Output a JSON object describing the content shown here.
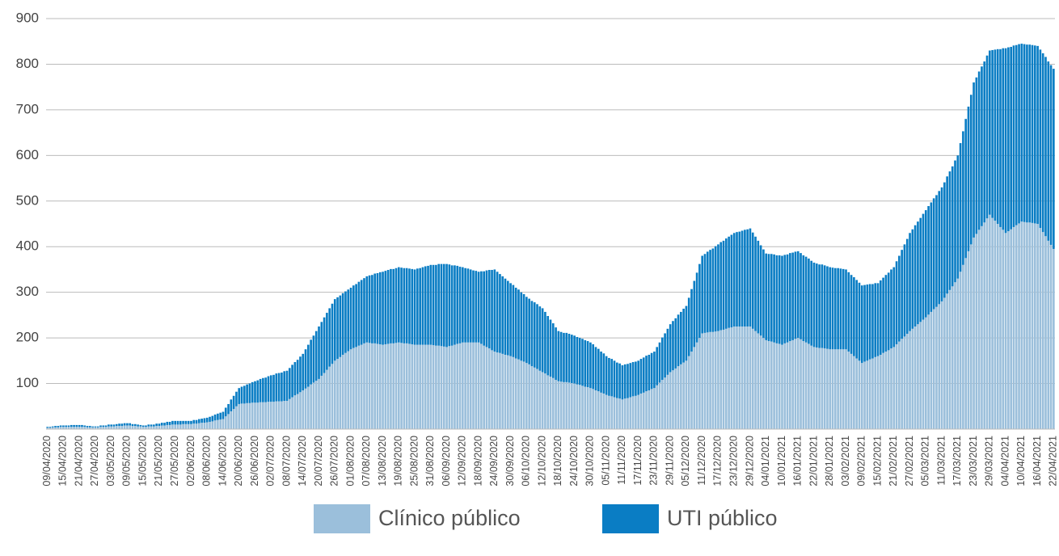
{
  "chart_data": {
    "type": "bar",
    "stacked": true,
    "categories": [
      "09/04/2020",
      null,
      null,
      null,
      null,
      null,
      "15/04/2020",
      null,
      null,
      null,
      null,
      null,
      "21/04/2020",
      null,
      null,
      null,
      null,
      null,
      "27/04/2020",
      null,
      null,
      null,
      null,
      null,
      "03/05/2020",
      null,
      null,
      null,
      null,
      null,
      "09/05/2020",
      null,
      null,
      null,
      null,
      null,
      "15/05/2020",
      null,
      null,
      null,
      null,
      null,
      "21/05/2020",
      null,
      null,
      null,
      null,
      null,
      "27/05/2020",
      null,
      null,
      null,
      null,
      null,
      "02/06/2020",
      null,
      null,
      null,
      null,
      null,
      "08/06/2020",
      null,
      null,
      null,
      null,
      null,
      "14/06/2020",
      null,
      null,
      null,
      null,
      null,
      "20/06/2020",
      null,
      null,
      null,
      null,
      null,
      "26/06/2020",
      null,
      null,
      null,
      null,
      null,
      "02/07/2020",
      null,
      null,
      null,
      null,
      null,
      "08/07/2020",
      null,
      null,
      null,
      null,
      null,
      "14/07/2020",
      null,
      null,
      null,
      null,
      null,
      "20/07/2020",
      null,
      null,
      null,
      null,
      null,
      "26/07/2020",
      null,
      null,
      null,
      null,
      null,
      "01/08/2020",
      null,
      null,
      null,
      null,
      null,
      "07/08/2020",
      null,
      null,
      null,
      null,
      null,
      "13/08/2020",
      null,
      null,
      null,
      null,
      null,
      "19/08/2020",
      null,
      null,
      null,
      null,
      null,
      "25/08/2020",
      null,
      null,
      null,
      null,
      null,
      "31/08/2020",
      null,
      null,
      null,
      null,
      null,
      "06/09/2020",
      null,
      null,
      null,
      null,
      null,
      "12/09/2020",
      null,
      null,
      null,
      null,
      null,
      "18/09/2020",
      null,
      null,
      null,
      null,
      null,
      "24/09/2020",
      null,
      null,
      null,
      null,
      null,
      "30/09/2020",
      null,
      null,
      null,
      null,
      null,
      "06/10/2020",
      null,
      null,
      null,
      null,
      null,
      "12/10/2020",
      null,
      null,
      null,
      null,
      null,
      "18/10/2020",
      null,
      null,
      null,
      null,
      null,
      "24/10/2020",
      null,
      null,
      null,
      null,
      null,
      "30/10/2020",
      null,
      null,
      null,
      null,
      null,
      "05/11/2020",
      null,
      null,
      null,
      null,
      null,
      "11/11/2020",
      null,
      null,
      null,
      null,
      null,
      "17/11/2020",
      null,
      null,
      null,
      null,
      null,
      "23/11/2020",
      null,
      null,
      null,
      null,
      null,
      "29/11/2020",
      null,
      null,
      null,
      null,
      null,
      "05/12/2020",
      null,
      null,
      null,
      null,
      null,
      "11/12/2020",
      null,
      null,
      null,
      null,
      null,
      "17/12/2020",
      null,
      null,
      null,
      null,
      null,
      "23/12/2020",
      null,
      null,
      null,
      null,
      null,
      "29/12/2020",
      null,
      null,
      null,
      null,
      null,
      "04/01/2021",
      null,
      null,
      null,
      null,
      null,
      "10/01/2021",
      null,
      null,
      null,
      null,
      null,
      "16/01/2021",
      null,
      null,
      null,
      null,
      null,
      "22/01/2021",
      null,
      null,
      null,
      null,
      null,
      "28/01/2021",
      null,
      null,
      null,
      null,
      null,
      "03/02/2021",
      null,
      null,
      null,
      null,
      null,
      "09/02/2021",
      null,
      null,
      null,
      null,
      null,
      "15/02/2021",
      null,
      null,
      null,
      null,
      null,
      "21/02/2021",
      null,
      null,
      null,
      null,
      null,
      "27/02/2021",
      null,
      null,
      null,
      null,
      null,
      "05/03/2021",
      null,
      null,
      null,
      null,
      null,
      "11/03/2021",
      null,
      null,
      null,
      null,
      null,
      "17/03/2021",
      null,
      null,
      null,
      null,
      null,
      "23/03/2021",
      null,
      null,
      null,
      null,
      null,
      "29/03/2021",
      null,
      null,
      null,
      null,
      null,
      "04/04/2021",
      null,
      null,
      null,
      null,
      null,
      "10/04/2021",
      null,
      null,
      null,
      null,
      null,
      "16/04/2021",
      null,
      null,
      null,
      null,
      null,
      "22/04/2021"
    ],
    "series": [
      {
        "name": "Clínico público",
        "color": "#9bbfdb",
        "values": [
          3,
          3,
          4,
          4,
          4,
          5,
          5,
          5,
          5,
          5,
          5,
          5,
          5,
          5,
          5,
          4,
          4,
          4,
          4,
          4,
          5,
          5,
          5,
          6,
          6,
          6,
          7,
          7,
          7,
          8,
          8,
          8,
          7,
          7,
          6,
          6,
          5,
          5,
          6,
          6,
          6,
          7,
          7,
          8,
          8,
          9,
          9,
          10,
          10,
          10,
          10,
          11,
          11,
          11,
          11,
          12,
          12,
          13,
          14,
          14,
          15,
          16,
          17,
          19,
          20,
          21,
          22,
          28,
          33,
          39,
          44,
          50,
          55,
          56,
          56,
          57,
          57,
          58,
          58,
          58,
          59,
          59,
          59,
          60,
          60,
          60,
          61,
          61,
          61,
          62,
          62,
          66,
          70,
          74,
          77,
          81,
          85,
          89,
          93,
          98,
          102,
          106,
          110,
          117,
          123,
          130,
          137,
          143,
          150,
          154,
          158,
          163,
          167,
          171,
          175,
          178,
          180,
          183,
          185,
          188,
          190,
          189,
          188,
          188,
          187,
          186,
          185,
          186,
          187,
          188,
          188,
          189,
          190,
          189,
          188,
          188,
          187,
          186,
          185,
          185,
          185,
          185,
          185,
          185,
          185,
          184,
          183,
          183,
          182,
          181,
          180,
          182,
          183,
          185,
          187,
          188,
          190,
          190,
          190,
          190,
          190,
          190,
          190,
          187,
          183,
          180,
          177,
          173,
          170,
          168,
          167,
          165,
          163,
          162,
          160,
          158,
          155,
          153,
          150,
          148,
          145,
          142,
          138,
          135,
          132,
          128,
          125,
          122,
          118,
          115,
          112,
          108,
          105,
          104,
          103,
          103,
          102,
          101,
          100,
          98,
          97,
          95,
          93,
          92,
          90,
          88,
          85,
          83,
          80,
          78,
          75,
          73,
          72,
          70,
          68,
          67,
          65,
          67,
          68,
          70,
          72,
          73,
          75,
          78,
          80,
          83,
          85,
          88,
          90,
          96,
          102,
          108,
          113,
          119,
          125,
          129,
          133,
          138,
          142,
          146,
          150,
          160,
          170,
          180,
          190,
          200,
          210,
          211,
          212,
          213,
          213,
          214,
          215,
          217,
          218,
          220,
          222,
          223,
          225,
          225,
          225,
          225,
          225,
          225,
          225,
          220,
          215,
          210,
          205,
          200,
          195,
          193,
          192,
          190,
          188,
          187,
          185,
          188,
          190,
          193,
          195,
          198,
          200,
          197,
          193,
          190,
          187,
          183,
          180,
          179,
          178,
          178,
          177,
          176,
          175,
          175,
          175,
          175,
          175,
          175,
          175,
          170,
          165,
          160,
          155,
          150,
          145,
          148,
          150,
          153,
          155,
          158,
          160,
          163,
          167,
          170,
          173,
          177,
          180,
          186,
          192,
          198,
          203,
          209,
          215,
          220,
          225,
          230,
          235,
          240,
          245,
          251,
          257,
          263,
          268,
          274,
          280,
          288,
          297,
          305,
          313,
          322,
          330,
          345,
          360,
          375,
          390,
          405,
          420,
          428,
          437,
          445,
          453,
          462,
          470,
          463,
          457,
          450,
          443,
          437,
          430,
          434,
          438,
          443,
          447,
          451,
          455,
          454,
          453,
          453,
          452,
          451,
          450,
          441,
          432,
          423,
          413,
          404,
          395
        ]
      },
      {
        "name": "UTI público",
        "color": "#0a7dc4",
        "values": [
          2,
          2,
          2,
          3,
          3,
          3,
          3,
          3,
          3,
          4,
          4,
          4,
          4,
          4,
          3,
          3,
          3,
          2,
          2,
          2,
          3,
          3,
          3,
          4,
          4,
          4,
          4,
          5,
          5,
          5,
          5,
          5,
          4,
          4,
          4,
          3,
          3,
          3,
          4,
          4,
          4,
          5,
          5,
          6,
          6,
          7,
          7,
          8,
          8,
          8,
          8,
          7,
          7,
          7,
          7,
          8,
          8,
          9,
          9,
          10,
          10,
          11,
          12,
          13,
          14,
          15,
          16,
          19,
          22,
          26,
          29,
          32,
          35,
          37,
          39,
          41,
          43,
          45,
          47,
          49,
          51,
          53,
          54,
          56,
          58,
          59,
          61,
          62,
          63,
          65,
          66,
          68,
          71,
          73,
          75,
          78,
          80,
          86,
          92,
          98,
          103,
          109,
          115,
          118,
          122,
          125,
          128,
          132,
          135,
          135,
          135,
          135,
          135,
          135,
          135,
          137,
          138,
          140,
          142,
          143,
          145,
          148,
          150,
          153,
          155,
          158,
          160,
          161,
          162,
          163,
          163,
          164,
          165,
          165,
          165,
          165,
          165,
          165,
          165,
          167,
          168,
          170,
          172,
          173,
          175,
          176,
          177,
          179,
          180,
          181,
          182,
          179,
          176,
          174,
          171,
          168,
          165,
          163,
          162,
          160,
          158,
          157,
          155,
          159,
          163,
          168,
          172,
          176,
          180,
          177,
          173,
          170,
          167,
          163,
          160,
          158,
          155,
          153,
          150,
          148,
          145,
          144,
          143,
          143,
          142,
          141,
          140,
          135,
          130,
          125,
          120,
          115,
          110,
          109,
          108,
          108,
          107,
          106,
          105,
          104,
          103,
          103,
          102,
          101,
          100,
          98,
          95,
          93,
          90,
          88,
          85,
          83,
          82,
          80,
          78,
          77,
          75,
          75,
          75,
          75,
          75,
          75,
          75,
          76,
          77,
          78,
          78,
          79,
          80,
          84,
          88,
          93,
          97,
          101,
          105,
          108,
          110,
          113,
          115,
          118,
          120,
          128,
          137,
          145,
          153,
          162,
          170,
          173,
          177,
          180,
          183,
          187,
          190,
          193,
          195,
          198,
          200,
          203,
          205,
          207,
          208,
          210,
          212,
          213,
          215,
          211,
          207,
          203,
          198,
          194,
          190,
          191,
          192,
          193,
          193,
          194,
          195,
          194,
          193,
          193,
          192,
          191,
          190,
          189,
          188,
          188,
          187,
          186,
          185,
          184,
          183,
          183,
          182,
          181,
          180,
          179,
          178,
          178,
          177,
          176,
          175,
          174,
          173,
          173,
          172,
          171,
          170,
          168,
          167,
          165,
          163,
          162,
          160,
          163,
          165,
          168,
          170,
          173,
          175,
          182,
          188,
          195,
          202,
          208,
          215,
          218,
          222,
          225,
          228,
          232,
          235,
          238,
          240,
          243,
          245,
          248,
          250,
          253,
          257,
          260,
          263,
          267,
          270,
          282,
          293,
          305,
          317,
          328,
          340,
          343,
          347,
          350,
          353,
          357,
          360,
          368,
          375,
          383,
          390,
          398,
          405,
          403,
          400,
          398,
          395,
          393,
          390,
          390,
          390,
          390,
          390,
          390,
          390,
          391,
          392,
          393,
          393,
          394,
          395
        ]
      }
    ],
    "ylim": [
      0,
      900
    ],
    "yticks": [
      100,
      200,
      300,
      400,
      500,
      600,
      700,
      800,
      900
    ],
    "grid": true,
    "legend": "bottom"
  }
}
